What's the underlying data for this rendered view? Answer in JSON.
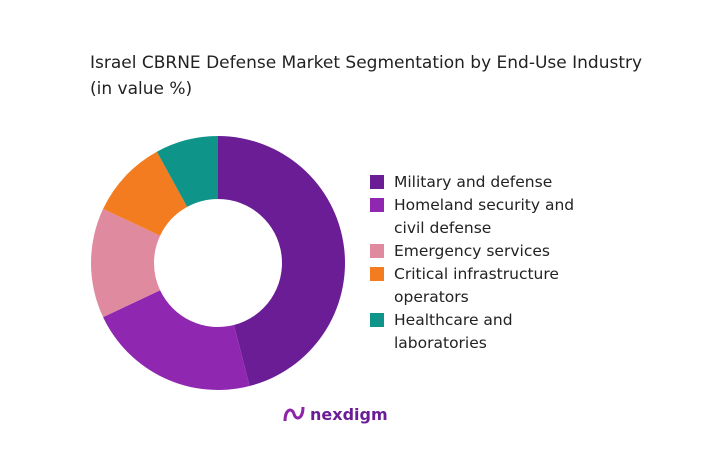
{
  "brand": "nexdigm",
  "chart_data": {
    "type": "donut",
    "title": "Israel CBRNE Defense Market Segmentation by End-Use Industry (in value %)",
    "categories": [
      "Military and defense",
      "Homeland security and civil defense",
      "Emergency services",
      "Critical infrastructure operators",
      "Healthcare and laboratories"
    ],
    "values": [
      46,
      22,
      14,
      10,
      8
    ],
    "colors": [
      "#6b1d96",
      "#9027b0",
      "#e08aa0",
      "#f47c20",
      "#0e9488"
    ]
  }
}
